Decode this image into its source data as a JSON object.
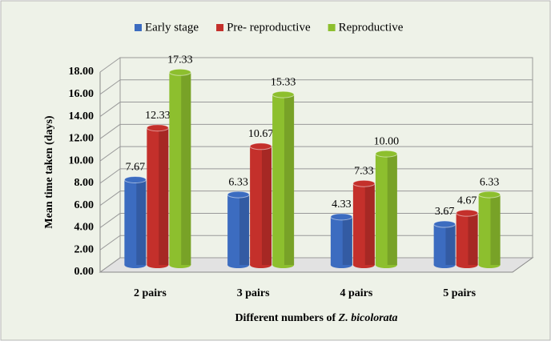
{
  "chart_data": {
    "type": "bar3d",
    "categories": [
      "2 pairs",
      "3 pairs",
      "4 pairs",
      "5 pairs"
    ],
    "series": [
      {
        "name": "Early stage",
        "color": "#3c6cc0",
        "values": [
          7.67,
          6.33,
          4.33,
          3.67
        ],
        "value_labels": [
          "7.67",
          "6.33",
          "4.33",
          "3.67"
        ]
      },
      {
        "name": "Pre- reproductive",
        "color": "#c4302b",
        "values": [
          12.33,
          10.67,
          7.33,
          4.67
        ],
        "value_labels": [
          "12.33",
          "10.67",
          "7.33",
          "4.67"
        ]
      },
      {
        "name": "Reproductive",
        "color": "#8dbf2e",
        "values": [
          17.33,
          15.33,
          10.0,
          6.33
        ],
        "value_labels": [
          "17.33",
          "15.33",
          "10.00",
          "6.33"
        ]
      }
    ],
    "ylim": [
      0,
      18
    ],
    "yticks": [
      {
        "value": 0,
        "label": "0.00"
      },
      {
        "value": 2,
        "label": "2.00"
      },
      {
        "value": 4,
        "label": "4.00"
      },
      {
        "value": 6,
        "label": "6.00"
      },
      {
        "value": 8,
        "label": "8.00"
      },
      {
        "value": 10,
        "label": "10.00"
      },
      {
        "value": 12,
        "label": "12.00"
      },
      {
        "value": 14,
        "label": "14.00"
      },
      {
        "value": 16,
        "label": "16.00"
      },
      {
        "value": 18,
        "label": "18.00"
      }
    ],
    "y_label": "Mean  time taken (days)",
    "x_label": {
      "text": "Different numbers of",
      "italic": "Z. bicolorata"
    },
    "grid": true,
    "legend": "top"
  }
}
